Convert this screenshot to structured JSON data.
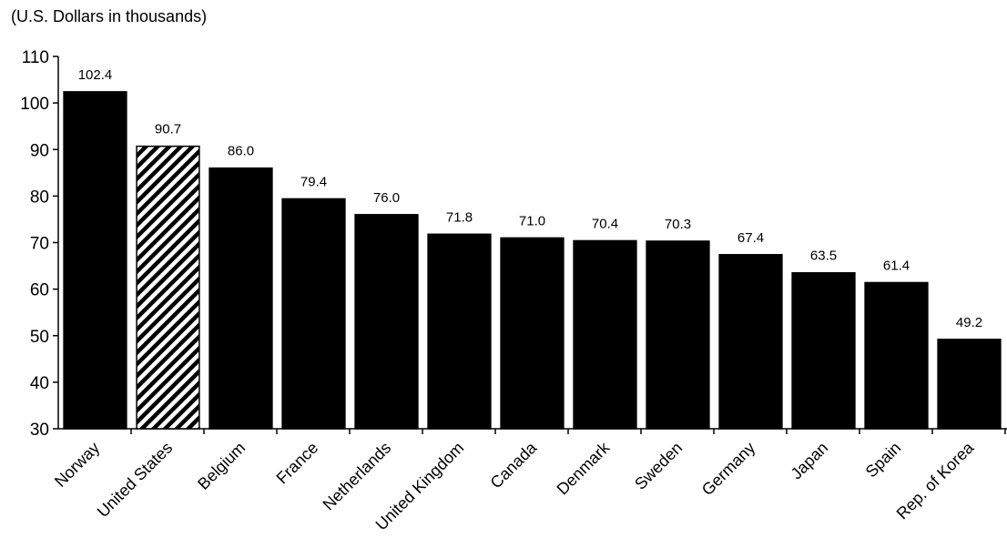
{
  "chart_data": {
    "type": "bar",
    "title": "",
    "subtitle": "(U.S. Dollars in thousands)",
    "xlabel": "",
    "ylabel": "",
    "ylim": [
      30,
      110
    ],
    "yticks": [
      30,
      40,
      50,
      60,
      70,
      80,
      90,
      100,
      110
    ],
    "grid": false,
    "categories": [
      "Norway",
      "United States",
      "Belgium",
      "France",
      "Netherlands",
      "United Kingdom",
      "Canada",
      "Denmark",
      "Sweden",
      "Germany",
      "Japan",
      "Spain",
      "Rep. of Korea"
    ],
    "values": [
      102.4,
      90.7,
      86.0,
      79.4,
      76.0,
      71.8,
      71.0,
      70.4,
      70.3,
      67.4,
      63.5,
      61.4,
      49.2
    ],
    "data_labels": [
      "102.4",
      "90.7",
      "86.0",
      "79.4",
      "76.0",
      "71.8",
      "71.0",
      "70.4",
      "70.3",
      "67.4",
      "63.5",
      "61.4",
      "49.2"
    ],
    "highlight_category": "United States",
    "highlight_style": "diagonal-hatch",
    "bar_color": "#000000"
  }
}
